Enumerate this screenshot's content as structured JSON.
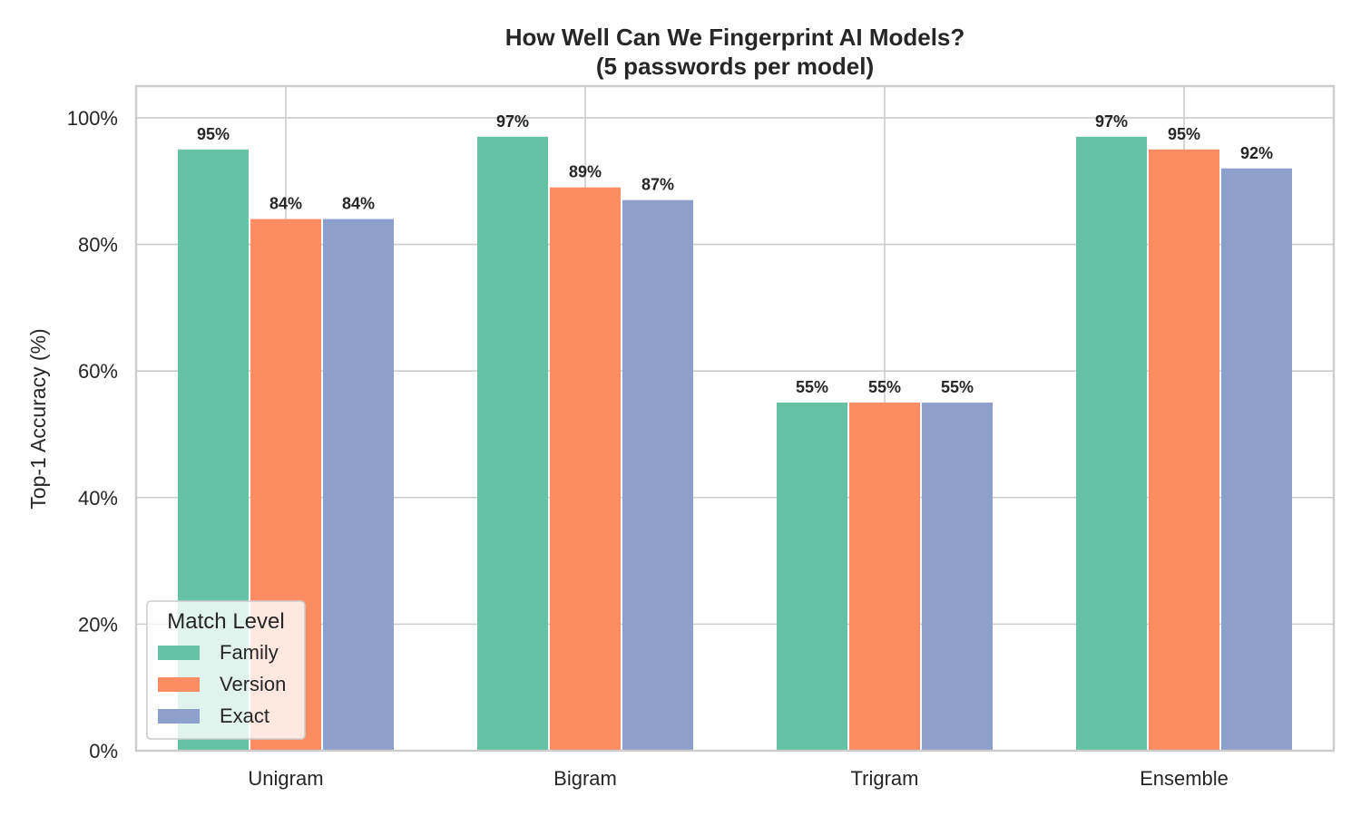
{
  "chart_data": {
    "type": "bar",
    "title": "How Well Can We Fingerprint AI Models?",
    "subtitle": "(5 passwords per model)",
    "xlabel": "",
    "ylabel": "Top-1 Accuracy (%)",
    "ylim": [
      0,
      105
    ],
    "yticks": [
      0,
      20,
      40,
      60,
      80,
      100
    ],
    "ytick_labels": [
      "0%",
      "20%",
      "40%",
      "60%",
      "80%",
      "100%"
    ],
    "grid": true,
    "categories": [
      "Unigram",
      "Bigram",
      "Trigram",
      "Ensemble"
    ],
    "series": [
      {
        "name": "Family",
        "color": "#66c2a5",
        "values": [
          95,
          97,
          55,
          97
        ],
        "labels": [
          "95%",
          "97%",
          "55%",
          "97%"
        ]
      },
      {
        "name": "Version",
        "color": "#fc8d62",
        "values": [
          84,
          89,
          55,
          95
        ],
        "labels": [
          "84%",
          "89%",
          "55%",
          "95%"
        ]
      },
      {
        "name": "Exact",
        "color": "#8da0cb",
        "values": [
          84,
          87,
          55,
          92
        ],
        "labels": [
          "84%",
          "87%",
          "55%",
          "92%"
        ]
      }
    ],
    "legend": {
      "title": "Match Level",
      "position": "lower-left"
    }
  }
}
